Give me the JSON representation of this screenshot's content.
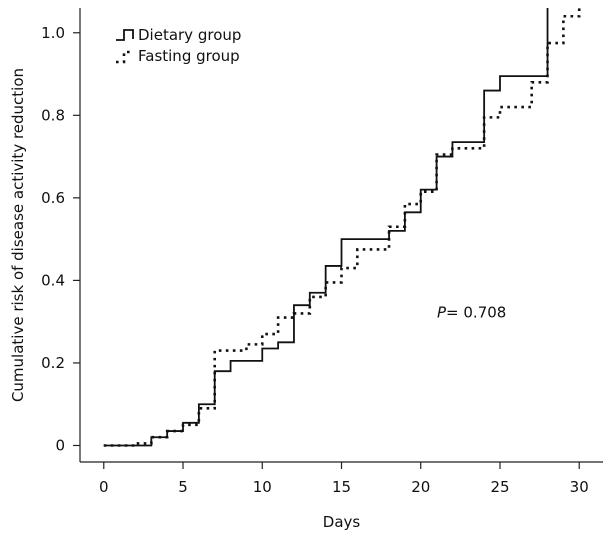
{
  "chart_data": {
    "type": "line",
    "xlabel": "Days",
    "ylabel": "Cumulative risk of disease activity reduction",
    "xlim": [
      -1.5,
      31.5
    ],
    "ylim": [
      -0.04,
      1.06
    ],
    "xticks": [
      0,
      5,
      10,
      15,
      20,
      25,
      30
    ],
    "xtick_labels": [
      "0",
      "5",
      "10",
      "15",
      "20",
      "25",
      "30"
    ],
    "yticks": [
      0,
      0.2,
      0.4,
      0.6,
      0.8,
      1.0
    ],
    "ytick_labels": [
      "0",
      "0.2",
      "0.4",
      "0.6",
      "0.8",
      "1.0"
    ],
    "grid": false,
    "legend_position": "top-left",
    "annotation": {
      "italic": "P",
      "text": "= 0.708"
    },
    "series": [
      {
        "name": "Dietary group",
        "style": "solid",
        "color": "#111111",
        "x": [
          0,
          3,
          4,
          5,
          6,
          7,
          8,
          10,
          11,
          12,
          13,
          14,
          15,
          18,
          19,
          20,
          21,
          22,
          24,
          25,
          28,
          28
        ],
        "y": [
          0,
          0.02,
          0.035,
          0.055,
          0.1,
          0.18,
          0.205,
          0.235,
          0.25,
          0.34,
          0.37,
          0.435,
          0.5,
          0.52,
          0.565,
          0.62,
          0.7,
          0.735,
          0.86,
          0.895,
          0.895,
          1.06
        ]
      },
      {
        "name": "Fasting group",
        "style": "dotted",
        "color": "#111111",
        "x": [
          0,
          2,
          3,
          4,
          5,
          6,
          7,
          9,
          10,
          11,
          12,
          13,
          14,
          15,
          16,
          18,
          19,
          20,
          21,
          22,
          24,
          25,
          27,
          28,
          29,
          30
        ],
        "y": [
          0,
          0.005,
          0.02,
          0.035,
          0.05,
          0.09,
          0.23,
          0.245,
          0.27,
          0.31,
          0.32,
          0.36,
          0.395,
          0.43,
          0.475,
          0.53,
          0.585,
          0.615,
          0.705,
          0.72,
          0.795,
          0.82,
          0.88,
          0.975,
          1.04,
          1.06
        ]
      }
    ]
  }
}
